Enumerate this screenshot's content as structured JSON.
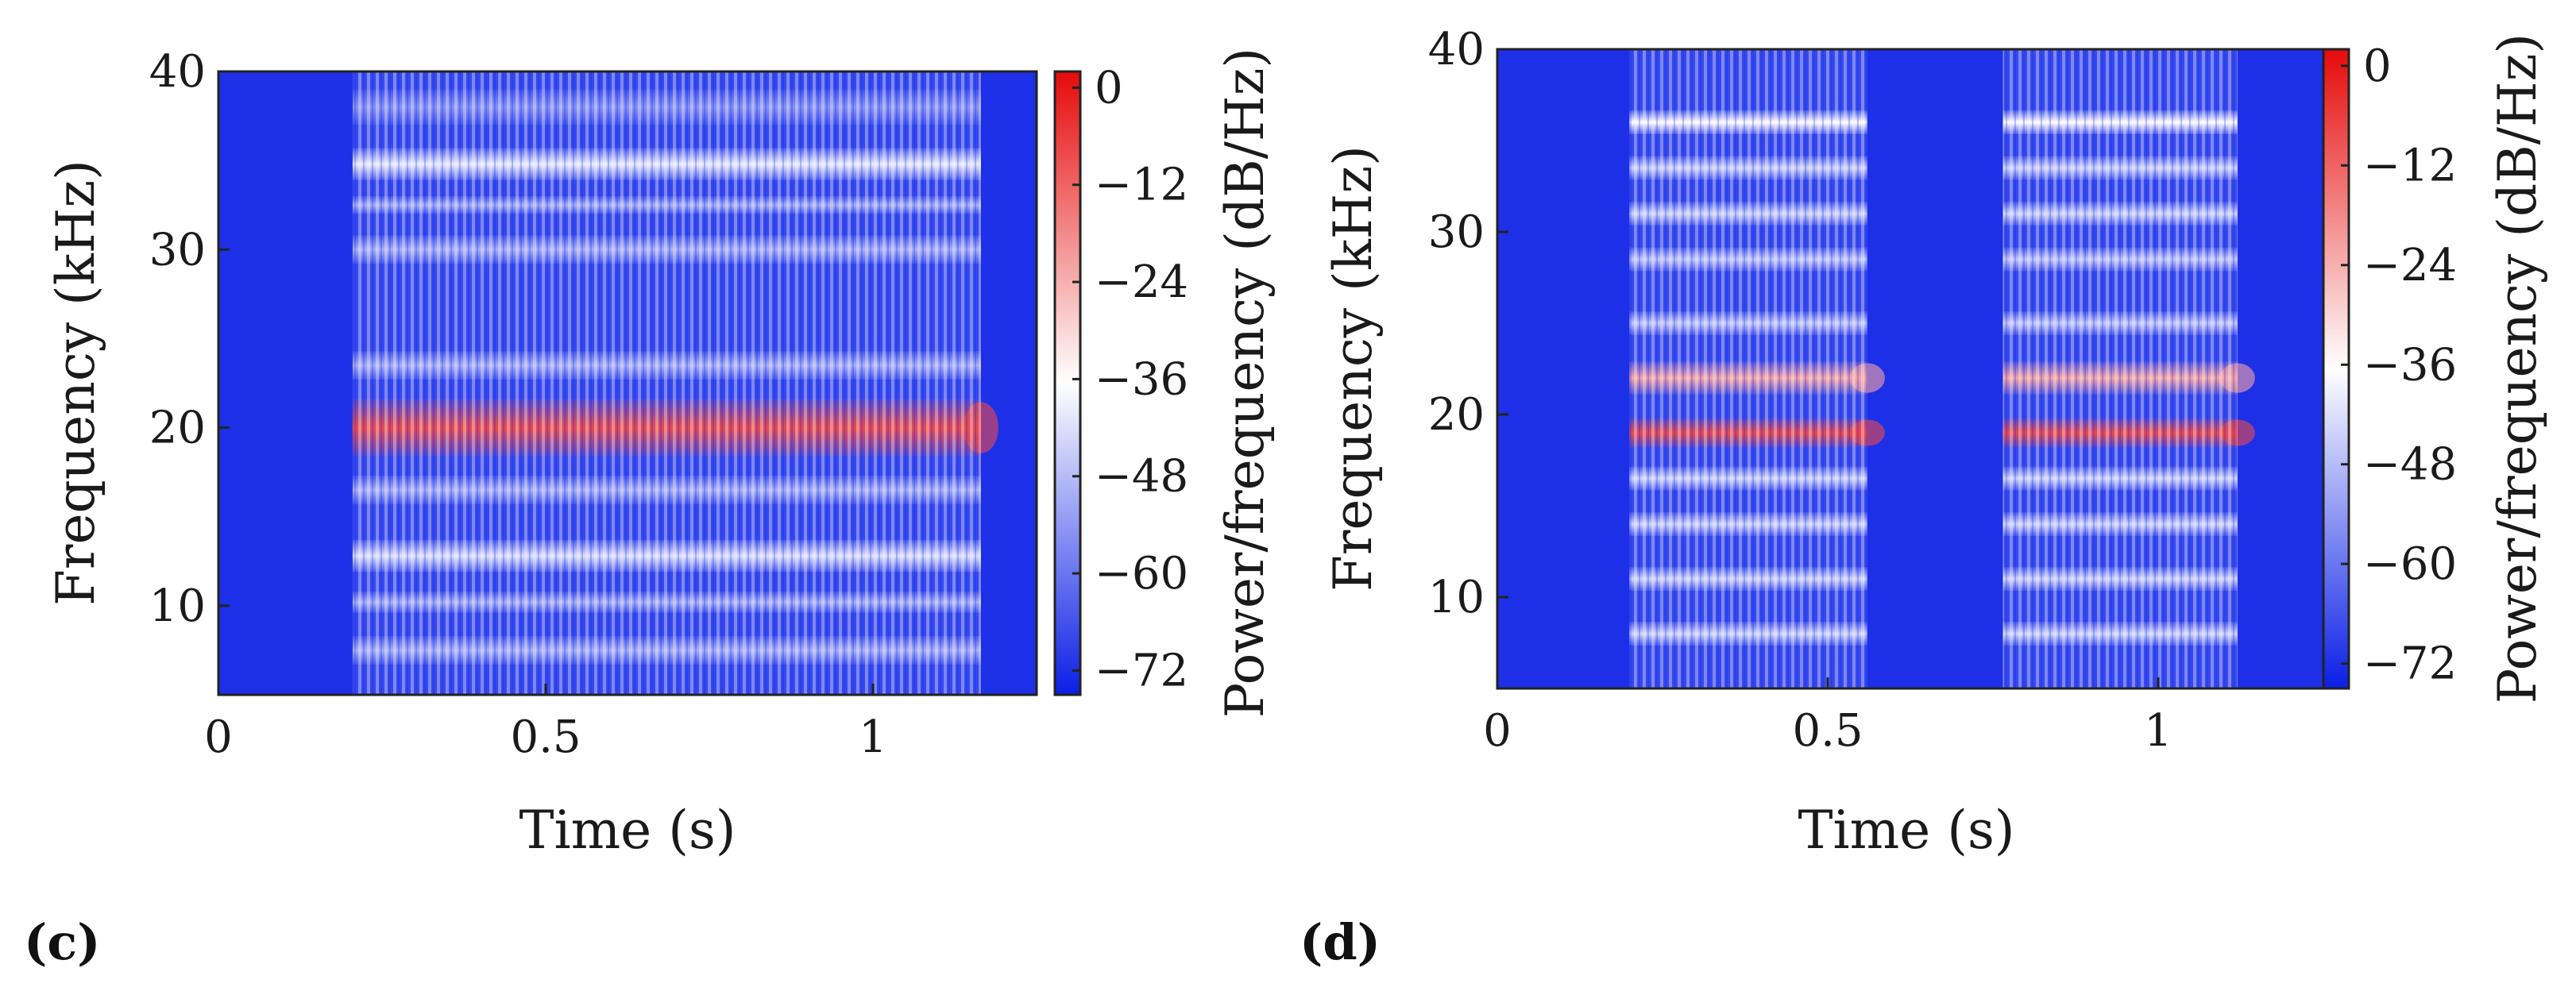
{
  "chart_data": [
    {
      "type": "heatmap",
      "panel_label": "(c)",
      "xlabel": "Time (s)",
      "ylabel": "Frequency (kHz)",
      "colorbar_label": "Power/frequency (dB/Hz)",
      "xlim": [
        0,
        1.25
      ],
      "ylim": [
        5,
        40
      ],
      "xticks": [
        0,
        0.5,
        1
      ],
      "xtick_labels": [
        "0",
        "0.5",
        "1"
      ],
      "yticks": [
        10,
        20,
        30,
        40
      ],
      "ytick_labels": [
        "10",
        "20",
        "30",
        "40"
      ],
      "clim": [
        -75,
        2
      ],
      "cticks": [
        0,
        -12,
        -24,
        -36,
        -48,
        -60,
        -72
      ],
      "ctick_labels": [
        "0",
        "−12",
        "−24",
        "−36",
        "−48",
        "−60",
        "−72"
      ],
      "colormap": [
        "#0a1ee6",
        "#ffffff",
        "#e60a0a"
      ],
      "background_db": -72,
      "signal_segments": [
        [
          0.205,
          1.165
        ]
      ],
      "bands": [
        {
          "freq_khz": 20.0,
          "width_khz": 3.2,
          "level_db": -8
        },
        {
          "freq_khz": 34.8,
          "width_khz": 1.8,
          "level_db": -40
        },
        {
          "freq_khz": 32.5,
          "width_khz": 1.0,
          "level_db": -50
        },
        {
          "freq_khz": 30.0,
          "width_khz": 1.6,
          "level_db": -50
        },
        {
          "freq_khz": 23.5,
          "width_khz": 1.6,
          "level_db": -50
        },
        {
          "freq_khz": 16.5,
          "width_khz": 1.6,
          "level_db": -50
        },
        {
          "freq_khz": 12.8,
          "width_khz": 1.8,
          "level_db": -42
        },
        {
          "freq_khz": 10.2,
          "width_khz": 1.2,
          "level_db": -50
        },
        {
          "freq_khz": 7.5,
          "width_khz": 1.6,
          "level_db": -50
        },
        {
          "freq_khz": 38.0,
          "width_khz": 2.0,
          "level_db": -55
        }
      ]
    },
    {
      "type": "heatmap",
      "panel_label": "(d)",
      "xlabel": "Time (s)",
      "ylabel": "Frequency (kHz)",
      "colorbar_label": "Power/frequency (dB/Hz)",
      "xlim": [
        0,
        1.25
      ],
      "ylim": [
        5,
        40
      ],
      "xticks": [
        0,
        0.5,
        1
      ],
      "xtick_labels": [
        "0",
        "0.5",
        "1"
      ],
      "yticks": [
        10,
        20,
        30,
        40
      ],
      "ytick_labels": [
        "10",
        "20",
        "30",
        "40"
      ],
      "clim": [
        -75,
        2
      ],
      "cticks": [
        0,
        -12,
        -24,
        -36,
        -48,
        -60,
        -72
      ],
      "ctick_labels": [
        "0",
        "−12",
        "−24",
        "−36",
        "−48",
        "−60",
        "−72"
      ],
      "colormap": [
        "#0a1ee6",
        "#ffffff",
        "#e60a0a"
      ],
      "background_db": -72,
      "signal_segments": [
        [
          0.2,
          0.56
        ],
        [
          0.765,
          1.12
        ]
      ],
      "bands": [
        {
          "freq_khz": 22.0,
          "width_khz": 1.8,
          "level_db": -22
        },
        {
          "freq_khz": 19.0,
          "width_khz": 1.6,
          "level_db": -8
        },
        {
          "freq_khz": 36.0,
          "width_khz": 1.3,
          "level_db": -36
        },
        {
          "freq_khz": 33.5,
          "width_khz": 1.3,
          "level_db": -44
        },
        {
          "freq_khz": 31.0,
          "width_khz": 1.3,
          "level_db": -44
        },
        {
          "freq_khz": 28.5,
          "width_khz": 1.3,
          "level_db": -46
        },
        {
          "freq_khz": 25.0,
          "width_khz": 1.3,
          "level_db": -46
        },
        {
          "freq_khz": 16.5,
          "width_khz": 1.3,
          "level_db": -44
        },
        {
          "freq_khz": 14.0,
          "width_khz": 1.3,
          "level_db": -44
        },
        {
          "freq_khz": 11.0,
          "width_khz": 1.3,
          "level_db": -44
        },
        {
          "freq_khz": 8.0,
          "width_khz": 1.3,
          "level_db": -44
        }
      ]
    }
  ]
}
